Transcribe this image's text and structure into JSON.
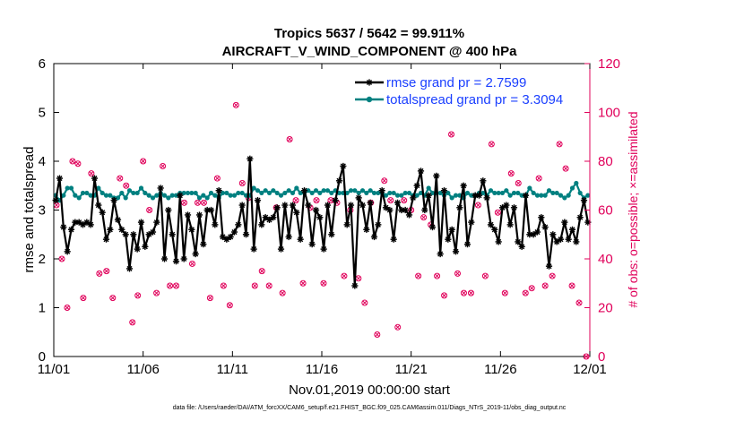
{
  "chart_data": {
    "type": "line",
    "title": [
      "Tropics 5637 / 5642 = 99.911%",
      "AIRCRAFT_V_WIND_COMPONENT @ 400 hPa"
    ],
    "xlabel": "Nov.01,2019 00:00:00 start",
    "ylabel": "rmse and totalspread",
    "ylabel_right": "# of obs: o=possible; ×=assimilated",
    "footnote": "data file: /Users/raeder/DAI/ATM_forcXX/CAM6_setup/f.e21.FHIST_BGC.f09_025.CAM6assim.011/Diags_NTrS_2019-11/obs_diag_output.nc",
    "xlim": [
      0,
      30
    ],
    "ylim": [
      0,
      6
    ],
    "ylim_right": [
      0,
      120
    ],
    "xticks": [
      0,
      5,
      10,
      15,
      20,
      25,
      30
    ],
    "xtick_labels": [
      "11/01",
      "11/06",
      "11/11",
      "11/16",
      "11/21",
      "11/26",
      "12/01"
    ],
    "yticks": [
      0,
      1,
      2,
      3,
      4,
      5,
      6
    ],
    "yticks_right": [
      0,
      20,
      40,
      60,
      80,
      100,
      120
    ],
    "colors": {
      "rmse": "#000000",
      "spread": "#008080",
      "obs": "#e0005a",
      "legend_text": "#1a3fff",
      "right_axis": "#e0005a"
    },
    "series": [
      {
        "name": "rmse grand pr = 2.7599",
        "values": [
          3.2,
          3.65,
          2.65,
          2.15,
          2.6,
          2.75,
          2.75,
          2.7,
          2.75,
          2.7,
          3.65,
          3.1,
          2.95,
          2.4,
          2.6,
          3.2,
          2.8,
          2.6,
          2.5,
          1.8,
          2.5,
          2.2,
          2.75,
          2.25,
          2.5,
          2.55,
          2.75,
          3.45,
          2.0,
          3.0,
          2.5,
          1.95,
          3.3,
          2.0,
          2.9,
          2.6,
          2.1,
          2.9,
          2.3,
          3.0,
          3.0,
          2.7,
          3.4,
          2.45,
          2.4,
          2.45,
          2.55,
          2.7,
          3.1,
          2.5,
          4.05,
          2.2,
          3.2,
          2.7,
          2.85,
          2.8,
          2.85,
          3.05,
          2.2,
          3.1,
          2.45,
          3.1,
          2.95,
          2.4,
          3.4,
          3.1,
          2.3,
          3.0,
          2.85,
          2.2,
          3.1,
          2.5,
          3.2,
          3.6,
          3.9,
          2.7,
          3.1,
          1.45,
          3.25,
          3.1,
          2.6,
          3.15,
          2.45,
          2.7,
          3.4,
          3.05,
          3.0,
          2.4,
          3.15,
          3.0,
          3.0,
          2.9,
          3.25,
          3.5,
          3.8,
          3.0,
          3.3,
          2.65,
          3.7,
          2.1,
          3.4,
          2.4,
          2.6,
          2.15,
          3.05,
          3.5,
          2.3,
          2.75,
          3.3,
          3.3,
          3.6,
          3.25,
          2.7,
          2.6,
          2.35,
          3.05,
          3.1,
          2.7,
          3.05,
          2.35,
          2.25,
          3.3,
          2.5,
          2.5,
          2.55,
          2.85,
          2.65,
          1.85,
          2.5,
          2.35,
          2.4,
          2.75,
          2.4,
          2.6,
          2.35,
          2.85,
          3.2,
          2.75
        ],
        "marker": "asterisk"
      },
      {
        "name": "totalspread grand pr = 3.3094",
        "values": [
          3.3,
          3.2,
          3.3,
          3.45,
          3.45,
          3.3,
          3.25,
          3.35,
          3.35,
          3.3,
          3.3,
          3.45,
          3.35,
          3.3,
          3.3,
          3.25,
          3.25,
          3.35,
          3.25,
          3.4,
          3.35,
          3.35,
          3.45,
          3.35,
          3.3,
          3.25,
          3.3,
          3.35,
          3.3,
          3.25,
          3.3,
          3.3,
          3.35,
          3.35,
          3.35,
          3.35,
          3.35,
          3.25,
          3.3,
          3.25,
          3.35,
          3.3,
          3.25,
          3.35,
          3.35,
          3.3,
          3.3,
          3.35,
          3.35,
          3.3,
          3.3,
          3.45,
          3.4,
          3.35,
          3.4,
          3.35,
          3.4,
          3.35,
          3.3,
          3.35,
          3.4,
          3.35,
          3.45,
          3.35,
          3.35,
          3.4,
          3.35,
          3.4,
          3.35,
          3.4,
          3.4,
          3.35,
          3.4,
          3.35,
          3.35,
          3.35,
          3.4,
          3.4,
          3.35,
          3.4,
          3.35,
          3.4,
          3.35,
          3.35,
          3.35,
          3.3,
          3.35,
          3.35,
          3.3,
          3.3,
          3.35,
          3.35,
          3.3,
          3.3,
          3.35,
          3.3,
          3.45,
          3.35,
          3.35,
          3.35,
          3.3,
          3.35,
          3.25,
          3.3,
          3.3,
          3.25,
          3.35,
          3.3,
          3.3,
          3.35,
          3.35,
          3.3,
          3.4,
          3.35,
          3.35,
          3.35,
          3.4,
          3.3,
          3.35,
          3.35,
          3.3,
          3.3,
          3.45,
          3.35,
          3.3,
          3.3,
          3.3,
          3.4,
          3.35,
          3.35,
          3.3,
          3.25,
          3.3,
          3.45,
          3.55,
          3.35,
          3.25,
          3.3
        ],
        "marker": "circle"
      },
      {
        "name": "obs possible / assimilated",
        "axis": "right",
        "x": [
          0.15,
          0.45,
          0.75,
          1.05,
          1.35,
          1.65,
          2.1,
          2.55,
          2.95,
          3.3,
          3.7,
          4.05,
          4.4,
          4.7,
          5.0,
          5.35,
          5.75,
          6.1,
          6.5,
          6.85,
          7.3,
          7.75,
          8.05,
          8.4,
          8.75,
          9.15,
          9.5,
          9.85,
          10.2,
          10.55,
          10.9,
          11.25,
          11.65,
          12.05,
          12.45,
          12.8,
          13.2,
          13.55,
          13.95,
          14.35,
          14.7,
          15.1,
          15.5,
          15.85,
          16.25,
          16.6,
          17.05,
          17.4,
          17.75,
          18.1,
          18.5,
          18.85,
          19.25,
          19.6,
          20.0,
          20.4,
          20.7,
          21.1,
          21.45,
          21.85,
          22.25,
          22.6,
          22.95,
          23.35,
          23.75,
          24.15,
          24.5,
          24.85,
          25.25,
          25.6,
          26.0,
          26.4,
          26.75,
          27.15,
          27.5,
          27.9,
          28.3,
          28.65,
          29.0,
          29.4,
          29.8
        ],
        "values": [
          62,
          40,
          20,
          80,
          79,
          24,
          75,
          34,
          35,
          24,
          73,
          70,
          14,
          25,
          80,
          60,
          26,
          78,
          29,
          29,
          63,
          38,
          63,
          63,
          24,
          73,
          29,
          21,
          103,
          71,
          65,
          29,
          35,
          29,
          61,
          26,
          89,
          64,
          30,
          61,
          64,
          30,
          64,
          63,
          33,
          60,
          32,
          22,
          63,
          9,
          72,
          64,
          12,
          64,
          60,
          33,
          57,
          54,
          33,
          25,
          91,
          34,
          26,
          26,
          62,
          33,
          87,
          59,
          26,
          75,
          71,
          26,
          28,
          73,
          29,
          33,
          87,
          77,
          29,
          22,
          0
        ],
        "marker": "circle-cross"
      }
    ],
    "legend": {
      "placement": "top-right"
    }
  }
}
